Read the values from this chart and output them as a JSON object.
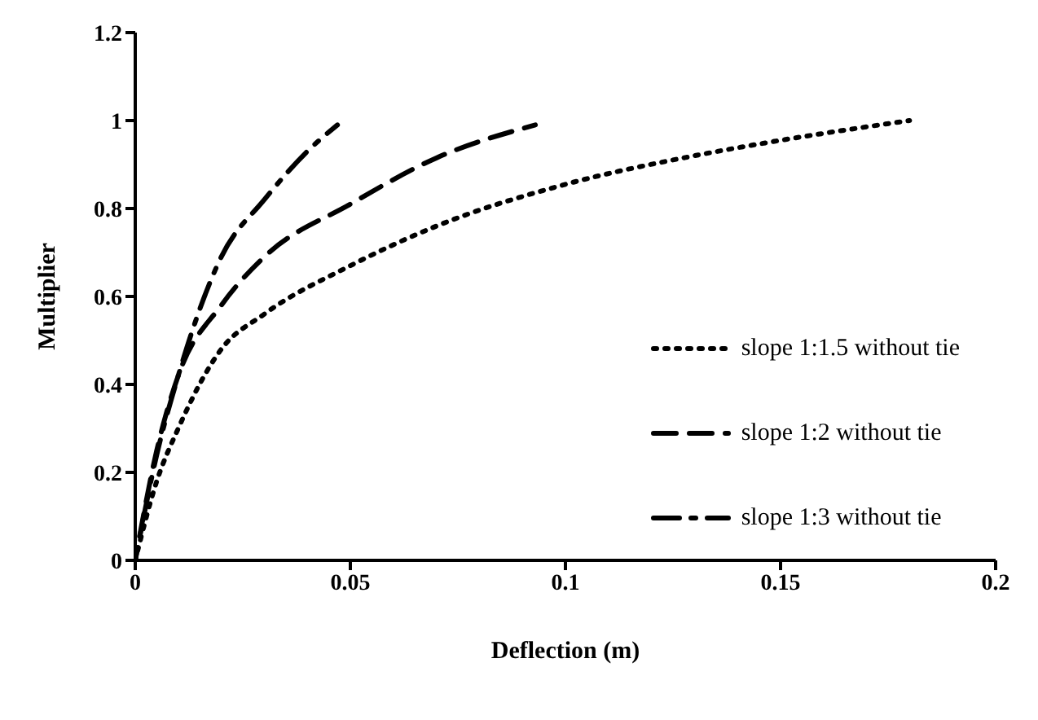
{
  "chart_data": {
    "type": "line",
    "xlabel": "Deflection (m)",
    "ylabel": "Multiplier",
    "xlim": [
      0,
      0.2
    ],
    "xticks": [
      0,
      0.05,
      0.1,
      0.15,
      0.2
    ],
    "ylim": [
      0,
      1.2
    ],
    "yticks": [
      0,
      0.2,
      0.4,
      0.6,
      0.8,
      1,
      1.2
    ],
    "grid": false,
    "legend": "right",
    "marker": "none",
    "series": [
      {
        "name": "slope 1:1.5 without tie",
        "color": "#000000",
        "line_style": "dotted",
        "x": [
          0,
          0.005,
          0.01,
          0.02,
          0.03,
          0.05,
          0.07,
          0.1,
          0.13,
          0.15,
          0.18
        ],
        "values": [
          0,
          0.18,
          0.3,
          0.48,
          0.56,
          0.67,
          0.76,
          0.855,
          0.92,
          0.955,
          1.0
        ]
      },
      {
        "name": "slope 1:2 without tie",
        "color": "#000000",
        "line_style": "dashed",
        "x": [
          0,
          0.005,
          0.01,
          0.02,
          0.03,
          0.05,
          0.07,
          0.093
        ],
        "values": [
          0,
          0.25,
          0.42,
          0.58,
          0.69,
          0.81,
          0.915,
          0.99
        ]
      },
      {
        "name": "slope 1:3 without tie",
        "color": "#000000",
        "line_style": "dashdot",
        "x": [
          0,
          0.005,
          0.01,
          0.02,
          0.03,
          0.04,
          0.047
        ],
        "values": [
          0,
          0.24,
          0.42,
          0.69,
          0.82,
          0.93,
          0.99
        ]
      }
    ]
  }
}
